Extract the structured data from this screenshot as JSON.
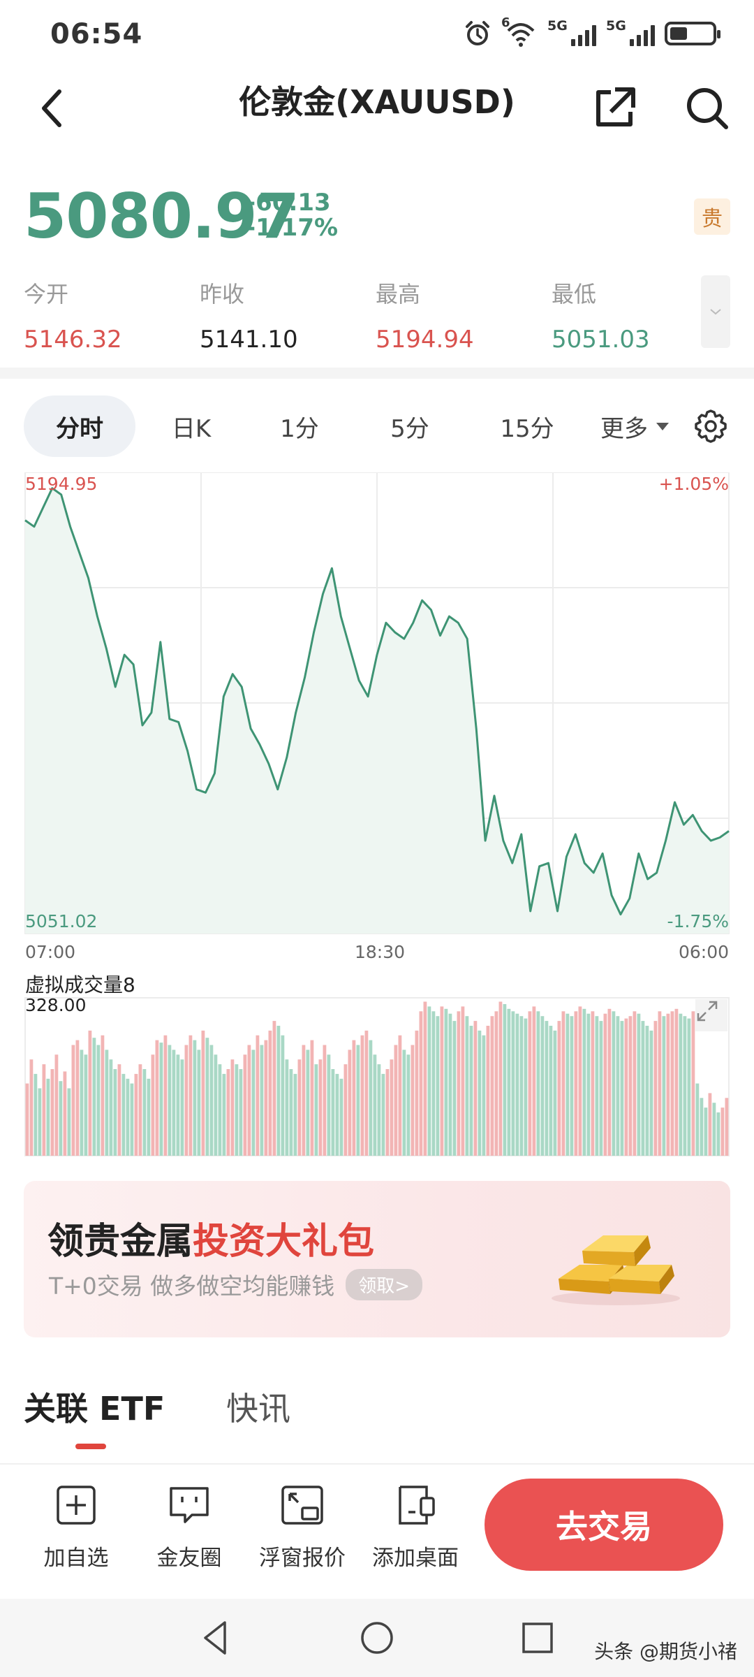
{
  "status_bar": {
    "time": "06:54",
    "network_1": "5G",
    "network_2": "5G",
    "wifi_badge": "6"
  },
  "header": {
    "title": "伦敦金(XAUUSD)"
  },
  "quote": {
    "price": "5080.97",
    "change": "-60.13",
    "change_pct": "-1.17%",
    "badge": "贵",
    "up_color": "#d9534f",
    "down_color": "#4a9a7f"
  },
  "stats": [
    {
      "label": "今开",
      "value": "5146.32",
      "color": "#d9534f"
    },
    {
      "label": "昨收",
      "value": "5141.10",
      "color": "#222222"
    },
    {
      "label": "最高",
      "value": "5194.94",
      "color": "#d9534f"
    },
    {
      "label": "最低",
      "value": "5051.03",
      "color": "#4a9a7f"
    }
  ],
  "tabs": {
    "items": [
      "分时",
      "日K",
      "1分",
      "5分",
      "15分"
    ],
    "more": "更多",
    "active": 0
  },
  "chart_data": {
    "type": "line",
    "ylim": [
      5051.02,
      5194.95
    ],
    "y_max_label": "5194.95",
    "y_min_label": "5051.02",
    "pct_max_label": "+1.05%",
    "pct_min_label": "-1.75%",
    "x_ticks": [
      "07:00",
      "18:30",
      "06:00"
    ],
    "prices": [
      5180,
      5178,
      5184,
      5190,
      5188,
      5178,
      5170,
      5162,
      5150,
      5140,
      5128,
      5138,
      5135,
      5116,
      5120,
      5142,
      5118,
      5117,
      5108,
      5096,
      5095,
      5101,
      5125,
      5132,
      5128,
      5115,
      5110,
      5104,
      5096,
      5106,
      5120,
      5131,
      5145,
      5157,
      5165,
      5150,
      5140,
      5130,
      5125,
      5138,
      5148,
      5145,
      5143,
      5148,
      5155,
      5152,
      5144,
      5150,
      5148,
      5143,
      5115,
      5080,
      5094,
      5080,
      5073,
      5082,
      5058,
      5072,
      5073,
      5058,
      5075,
      5082,
      5073,
      5070,
      5076,
      5063,
      5057,
      5062,
      5076,
      5068,
      5070,
      5080,
      5092,
      5085,
      5088,
      5083,
      5080,
      5081,
      5083
    ],
    "volume_label": "虚拟成交量8",
    "volume_max_label": "328.00",
    "volume_max": 328,
    "volumes": [
      150,
      200,
      170,
      140,
      190,
      160,
      180,
      210,
      155,
      175,
      140,
      230,
      240,
      220,
      210,
      260,
      245,
      230,
      250,
      220,
      200,
      180,
      190,
      170,
      160,
      150,
      170,
      190,
      180,
      160,
      210,
      240,
      235,
      250,
      230,
      220,
      210,
      200,
      230,
      250,
      240,
      220,
      260,
      245,
      230,
      210,
      190,
      170,
      180,
      200,
      190,
      180,
      210,
      230,
      220,
      250,
      230,
      240,
      260,
      280,
      270,
      250,
      200,
      180,
      170,
      200,
      230,
      220,
      240,
      190,
      200,
      230,
      210,
      180,
      170,
      160,
      190,
      220,
      240,
      230,
      250,
      260,
      240,
      210,
      190,
      170,
      180,
      200,
      230,
      250,
      220,
      210,
      230,
      260,
      300,
      320,
      310,
      300,
      290,
      310,
      305,
      295,
      280,
      300,
      310,
      290,
      270,
      280,
      260,
      250,
      270,
      290,
      300,
      320,
      315,
      305,
      300,
      295,
      290,
      285,
      300,
      310,
      300,
      290,
      280,
      270,
      260,
      280,
      300,
      295,
      290,
      300,
      310,
      305,
      295,
      300,
      290,
      280,
      295,
      305,
      300,
      290,
      280,
      285,
      290,
      300,
      295,
      280,
      270,
      260,
      280,
      300,
      290,
      295,
      300,
      305,
      295,
      290,
      285,
      300,
      150,
      120,
      100,
      130,
      110,
      90,
      100,
      120
    ]
  },
  "banner": {
    "title_plain": "领贵金属",
    "title_highlight": "投资大礼包",
    "subtitle": "T+0交易 做多做空均能赚钱",
    "cta": "领取>"
  },
  "subtabs": {
    "etf": "关联 ETF",
    "news": "快讯"
  },
  "toolbar": {
    "add_watch": "加自选",
    "community": "金友圈",
    "float_quote": "浮窗报价",
    "add_desktop": "添加桌面",
    "trade": "去交易"
  },
  "watermark": "头条 @期货小禇"
}
